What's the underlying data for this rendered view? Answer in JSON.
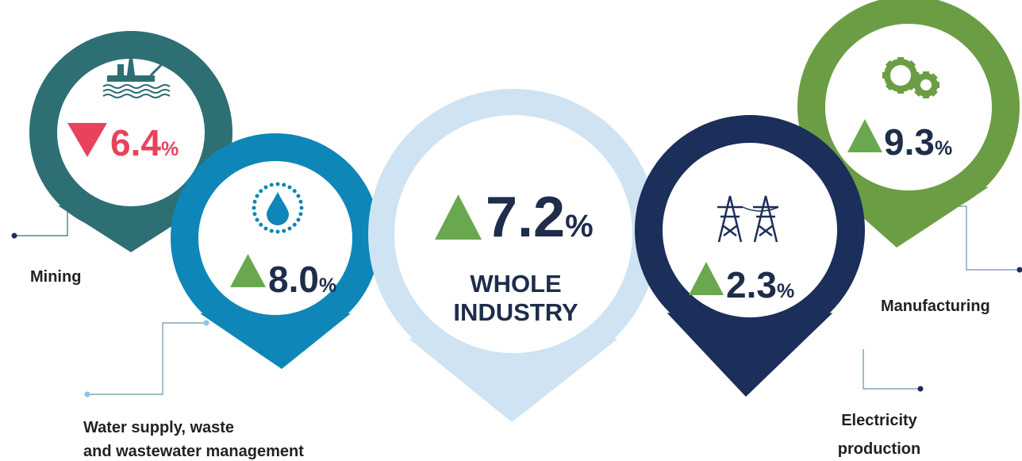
{
  "items": [
    {
      "label": [
        "Mining"
      ],
      "value": "6.4",
      "unit": "%",
      "direction": "down",
      "pin_color": "#2e6f74",
      "arrow_color": "#e8435a",
      "value_color": "#e8435a"
    },
    {
      "label": [
        "Water supply, waste",
        "and wastewater management"
      ],
      "value": "8.0",
      "unit": "%",
      "direction": "up",
      "pin_color": "#0e86b8",
      "arrow_color": "#6aa84f",
      "value_color": "#1e2d4a"
    },
    {
      "label": [
        "Manufacturing"
      ],
      "value": "9.3",
      "unit": "%",
      "direction": "up",
      "pin_color": "#6b9e44",
      "arrow_color": "#6aa84f",
      "value_color": "#1e2d4a"
    },
    {
      "label": [
        "WHOLE",
        "INDUSTRY"
      ],
      "value": "7.2",
      "unit": "%",
      "direction": "up",
      "pin_color": "#cfe3f2",
      "arrow_color": "#6aa84f",
      "value_color": "#1e2d4a"
    },
    {
      "label": [
        "Electricity",
        "production"
      ],
      "value": "2.3",
      "unit": "%",
      "direction": "up",
      "pin_color": "#1c2e5a",
      "arrow_color": "#6aa84f",
      "value_color": "#1e2d4a"
    }
  ]
}
